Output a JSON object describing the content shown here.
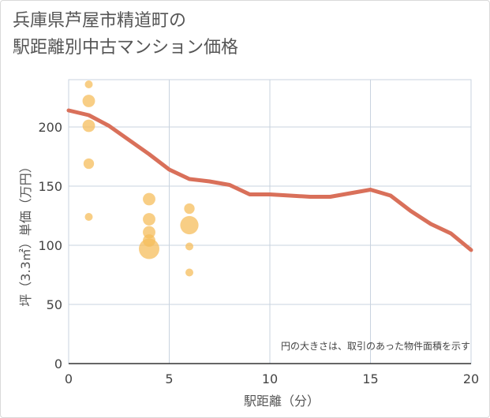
{
  "title_line1": "兵庫県芦屋市精道町の",
  "title_line2": "駅距離別中古マンション価格",
  "chart_data": {
    "type": "scatter",
    "title": "兵庫県芦屋市精道町の駅距離別中古マンション価格",
    "xlabel": "駅距離（分）",
    "ylabel": "坪（3.3㎡）単価（万円）",
    "xlim": [
      0,
      20
    ],
    "ylim": [
      0,
      240
    ],
    "xticks": [
      0,
      5,
      10,
      15,
      20
    ],
    "yticks": [
      0,
      50,
      100,
      150,
      200
    ],
    "grid": true,
    "note": "円の大きさは、取引のあった物件面積を示す",
    "points": [
      {
        "x": 1,
        "y": 236,
        "size": 1
      },
      {
        "x": 1,
        "y": 222,
        "size": 3
      },
      {
        "x": 1,
        "y": 201,
        "size": 3
      },
      {
        "x": 1,
        "y": 169,
        "size": 2
      },
      {
        "x": 1,
        "y": 124,
        "size": 1
      },
      {
        "x": 4,
        "y": 139,
        "size": 3
      },
      {
        "x": 4,
        "y": 122,
        "size": 3
      },
      {
        "x": 4,
        "y": 111,
        "size": 3
      },
      {
        "x": 4,
        "y": 104,
        "size": 3
      },
      {
        "x": 4,
        "y": 97,
        "size": 9
      },
      {
        "x": 6,
        "y": 131,
        "size": 2
      },
      {
        "x": 6,
        "y": 117,
        "size": 7
      },
      {
        "x": 6,
        "y": 99,
        "size": 1
      },
      {
        "x": 6,
        "y": 77,
        "size": 1
      }
    ],
    "trend_line": {
      "x": [
        0,
        1,
        2,
        3,
        4,
        5,
        6,
        7,
        8,
        9,
        10,
        11,
        12,
        13,
        14,
        15,
        16,
        17,
        18,
        19,
        20
      ],
      "y": [
        214,
        210,
        201,
        189,
        177,
        164,
        156,
        154,
        151,
        143,
        143,
        142,
        141,
        141,
        144,
        147,
        142,
        129,
        118,
        110,
        96
      ]
    },
    "colors": {
      "bubble": "#f5bd5c",
      "line": "#d9705a",
      "grid": "#c9d3df"
    }
  }
}
